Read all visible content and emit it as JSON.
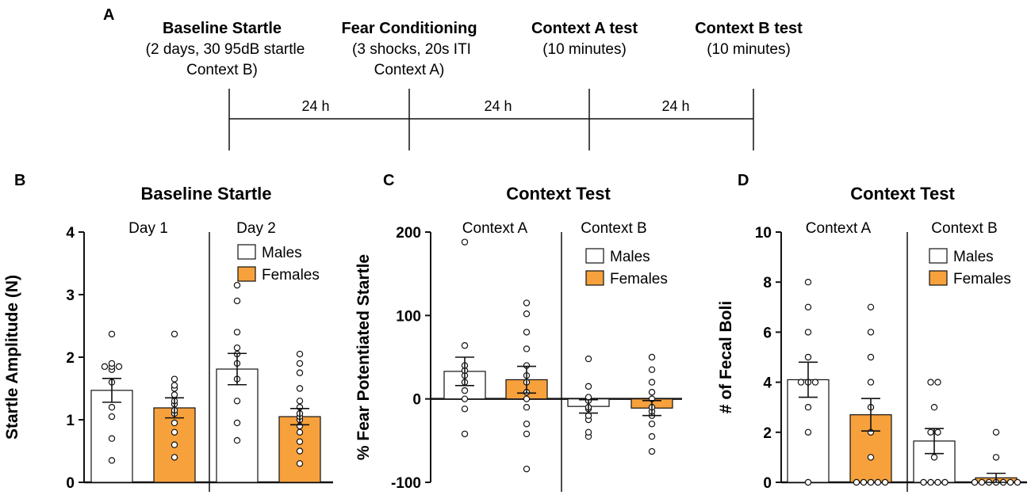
{
  "colors": {
    "male": "#ffffff",
    "female": "#f7a13c",
    "axis": "#111111",
    "dot_fill": "#ffffff"
  },
  "panel_letters": {
    "a": "A",
    "b": "B",
    "c": "C",
    "d": "D"
  },
  "timeline": {
    "phases": [
      {
        "title": "Baseline Startle",
        "line1": "(2 days, 30 95dB startle",
        "line2": "Context B)"
      },
      {
        "title": "Fear Conditioning",
        "line1": "(3 shocks, 20s ITI",
        "line2": "Context A)"
      },
      {
        "title": "Context A test",
        "line1": "(10 minutes)",
        "line2": ""
      },
      {
        "title": "Context B test",
        "line1": "(10 minutes)",
        "line2": ""
      }
    ],
    "intervals": [
      "24 h",
      "24 h",
      "24 h"
    ]
  },
  "chart_data": [
    {
      "type": "bar",
      "panel": "B",
      "title": "Baseline Startle",
      "ylabel": "Startle Amplitude (N)",
      "xlabel": "",
      "ylim": [
        0,
        4
      ],
      "yticks": [
        "0",
        "1",
        "2",
        "3",
        "4"
      ],
      "groups": [
        "Day 1",
        "Day 2"
      ],
      "legend": [
        "Males",
        "Females"
      ],
      "series": [
        {
          "name": "Males",
          "means": [
            1.47,
            1.81
          ],
          "sem": [
            0.19,
            0.25
          ]
        },
        {
          "name": "Females",
          "means": [
            1.19,
            1.05
          ],
          "sem": [
            0.16,
            0.13
          ]
        }
      ],
      "points": [
        [
          0.35,
          0.7,
          1.05,
          1.2,
          1.6,
          1.8,
          1.85,
          1.85,
          1.85,
          1.9,
          2.37
        ],
        [
          0.4,
          0.6,
          0.8,
          0.95,
          1.1,
          1.15,
          1.25,
          1.3,
          1.4,
          1.5,
          1.55,
          1.65,
          2.37
        ],
        [
          0.67,
          0.95,
          1.3,
          1.65,
          1.9,
          2.05,
          2.15,
          2.4,
          2.9,
          3.15
        ],
        [
          0.3,
          0.5,
          0.65,
          0.8,
          0.9,
          1.0,
          1.05,
          1.1,
          1.2,
          1.3,
          1.5,
          1.75,
          1.9,
          2.05
        ]
      ]
    },
    {
      "type": "bar",
      "panel": "C",
      "title": "Context Test",
      "ylabel": "% Fear Potentiated Startle",
      "xlabel": "",
      "ylim": [
        -100,
        200
      ],
      "yticks": [
        "-100",
        "0",
        "100",
        "200"
      ],
      "groups": [
        "Context A",
        "Context B"
      ],
      "legend": [
        "Males",
        "Females"
      ],
      "series": [
        {
          "name": "Males",
          "means": [
            33,
            -9
          ],
          "sem": [
            17,
            8
          ]
        },
        {
          "name": "Females",
          "means": [
            23,
            -11
          ],
          "sem": [
            16,
            9
          ]
        }
      ],
      "points": [
        [
          -42,
          -12,
          0,
          10,
          20,
          28,
          34,
          40,
          64,
          188
        ],
        [
          -84,
          -42,
          -30,
          -10,
          0,
          8,
          20,
          28,
          40,
          60,
          80,
          102,
          115
        ],
        [
          -45,
          -40,
          -25,
          -20,
          -12,
          -10,
          -2,
          2,
          15,
          48
        ],
        [
          -63,
          -45,
          -30,
          -20,
          -15,
          -10,
          0,
          8,
          20,
          35,
          50
        ]
      ]
    },
    {
      "type": "bar",
      "panel": "D",
      "title": "Context Test",
      "ylabel": "# of Fecal Boli",
      "xlabel": "",
      "ylim": [
        0,
        10
      ],
      "yticks": [
        "0",
        "2",
        "4",
        "6",
        "8",
        "10"
      ],
      "groups": [
        "Context A",
        "Context B"
      ],
      "legend": [
        "Males",
        "Females"
      ],
      "series": [
        {
          "name": "Males",
          "means": [
            4.1,
            1.65
          ],
          "sem": [
            0.7,
            0.5
          ]
        },
        {
          "name": "Females",
          "means": [
            2.7,
            0.18
          ],
          "sem": [
            0.65,
            0.18
          ]
        }
      ],
      "points": [
        [
          0,
          2,
          3,
          4,
          4,
          4,
          5,
          6,
          7,
          8
        ],
        [
          0,
          0,
          0,
          0,
          0,
          1,
          2,
          3,
          4,
          5,
          6,
          7
        ],
        [
          0,
          0,
          0,
          0,
          1,
          2,
          2,
          3,
          4,
          4
        ],
        [
          0,
          0,
          0,
          0,
          0,
          0,
          0,
          1,
          2
        ]
      ]
    }
  ]
}
